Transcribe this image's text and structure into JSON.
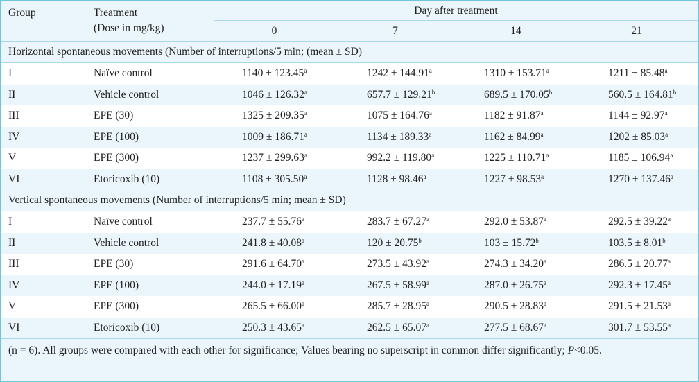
{
  "header": {
    "group": "Group",
    "treatment_line1": "Treatment",
    "treatment_line2": "(Dose in mg/kg)",
    "day_after": "Day after treatment",
    "days": [
      "0",
      "7",
      "14",
      "21"
    ]
  },
  "sections": [
    {
      "title": "Horizontal spontaneous movements (Number of interruptions/5 min; (mean ± SD)",
      "rows": [
        {
          "group": "I",
          "treatment": "Naïve control",
          "values": [
            {
              "v": "1140 ± 123.45",
              "s": "a"
            },
            {
              "v": "1242 ± 144.91",
              "s": "a"
            },
            {
              "v": "1310 ± 153.71",
              "s": "a"
            },
            {
              "v": "1211 ± 85.48",
              "s": "a"
            }
          ]
        },
        {
          "group": "II",
          "treatment": "Vehicle control",
          "values": [
            {
              "v": "1046 ± 126.32",
              "s": "a"
            },
            {
              "v": "657.7 ± 129.21",
              "s": "b"
            },
            {
              "v": "689.5 ± 170.05",
              "s": "b"
            },
            {
              "v": "560.5 ± 164.81",
              "s": "b"
            }
          ]
        },
        {
          "group": "III",
          "treatment": "EPE (30)",
          "values": [
            {
              "v": "1325 ± 209.35",
              "s": "a"
            },
            {
              "v": "1075 ± 164.76",
              "s": "a"
            },
            {
              "v": "1182 ± 91.87",
              "s": "a"
            },
            {
              "v": "1144 ± 92.97",
              "s": "a"
            }
          ]
        },
        {
          "group": "IV",
          "treatment": "EPE (100)",
          "values": [
            {
              "v": "1009 ± 186.71",
              "s": "a"
            },
            {
              "v": "1134 ± 189.33",
              "s": "a"
            },
            {
              "v": "1162 ± 84.99",
              "s": "a"
            },
            {
              "v": "1202 ± 85.03",
              "s": "a"
            }
          ]
        },
        {
          "group": "V",
          "treatment": "EPE (300)",
          "values": [
            {
              "v": "1237 ± 299.63",
              "s": "a"
            },
            {
              "v": "992.2 ± 119.80",
              "s": "a"
            },
            {
              "v": "1225 ± 110.71",
              "s": "a"
            },
            {
              "v": "1185 ± 106.94",
              "s": "a"
            }
          ]
        },
        {
          "group": "VI",
          "treatment": "Etoricoxib (10)",
          "values": [
            {
              "v": "1108 ± 305.50",
              "s": "a"
            },
            {
              "v": "1128 ± 98.46",
              "s": "a"
            },
            {
              "v": "1227 ± 98.53",
              "s": "a"
            },
            {
              "v": "1270 ± 137.46",
              "s": "a"
            }
          ]
        }
      ]
    },
    {
      "title": "Vertical spontaneous movements (Number of interruptions/5 min; mean ± SD)",
      "rows": [
        {
          "group": "I",
          "treatment": "Naïve control",
          "values": [
            {
              "v": "237.7 ± 55.76",
              "s": "a"
            },
            {
              "v": "283.7 ± 67.27",
              "s": "a"
            },
            {
              "v": "292.0 ± 53.87",
              "s": "a"
            },
            {
              "v": "292.5 ± 39.22",
              "s": "a"
            }
          ]
        },
        {
          "group": "II",
          "treatment": "Vehicle control",
          "values": [
            {
              "v": "241.8 ± 40.08",
              "s": "a"
            },
            {
              "v": "120 ± 20.75",
              "s": "b"
            },
            {
              "v": "103 ± 15.72",
              "s": "b"
            },
            {
              "v": "103.5 ± 8.01",
              "s": "b"
            }
          ]
        },
        {
          "group": "III",
          "treatment": "EPE (30)",
          "values": [
            {
              "v": "291.6 ± 64.70",
              "s": "a"
            },
            {
              "v": "273.5 ± 43.92",
              "s": "a"
            },
            {
              "v": "274.3 ± 34.20",
              "s": "a"
            },
            {
              "v": "286.5 ± 20.77",
              "s": "a"
            }
          ]
        },
        {
          "group": "IV",
          "treatment": "EPE (100)",
          "values": [
            {
              "v": "244.0 ± 17.19",
              "s": "a"
            },
            {
              "v": "267.5 ± 58.99",
              "s": "a"
            },
            {
              "v": "287.0 ± 26.75",
              "s": "a"
            },
            {
              "v": "292.3 ± 17.45",
              "s": "a"
            }
          ]
        },
        {
          "group": "V",
          "treatment": "EPE (300)",
          "values": [
            {
              "v": "265.5 ± 66.00",
              "s": "a"
            },
            {
              "v": "285.7 ± 28.95",
              "s": "a"
            },
            {
              "v": "290.5 ± 28.83",
              "s": "a"
            },
            {
              "v": "291.5 ± 21.53",
              "s": "a"
            }
          ]
        },
        {
          "group": "VI",
          "treatment": "Etoricoxib (10)",
          "values": [
            {
              "v": "250.3 ± 43.65",
              "s": "a"
            },
            {
              "v": "262.5 ± 65.07",
              "s": "a"
            },
            {
              "v": "277.5 ± 68.67",
              "s": "a"
            },
            {
              "v": "301.7 ± 53.55",
              "s": "a"
            }
          ]
        }
      ]
    }
  ],
  "footnote": {
    "text": "(n = 6). All groups were compared with each other for significance; Values bearing no superscript in common differ significantly;",
    "p_label": "P",
    "p_value": "<0.05."
  }
}
